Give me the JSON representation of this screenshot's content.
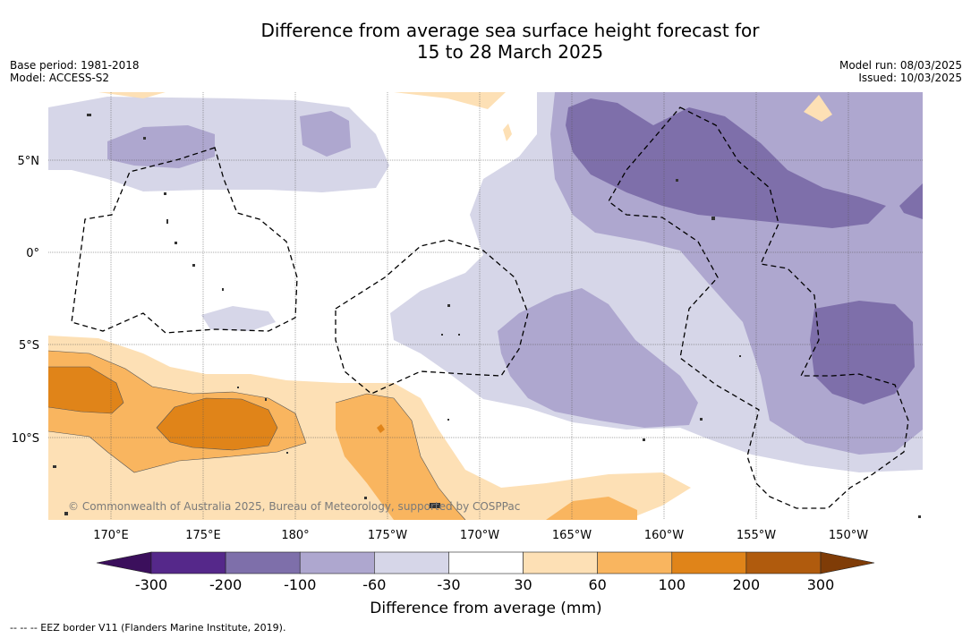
{
  "title": {
    "line1": "Difference from average sea surface height forecast for",
    "line2": "15 to 28 March 2025"
  },
  "info_left": {
    "base_period": "Base period: 1981-2018",
    "model": "Model: ACCESS-S2"
  },
  "info_right": {
    "model_run": "Model run: 08/03/2025",
    "issued": "Issued: 10/03/2025"
  },
  "map": {
    "lat_labels": [
      "5°N",
      "0°",
      "5°S",
      "10°S"
    ],
    "lon_labels": [
      "170°E",
      "175°E",
      "180°",
      "175°W",
      "170°W",
      "165°W",
      "160°W",
      "155°W",
      "150°W"
    ],
    "credit": "© Commonwealth of Australia 2025, Bureau of Meteorology, supported by COSPPac"
  },
  "colorbar": {
    "ticks": [
      "-300",
      "-200",
      "-100",
      "-60",
      "-30",
      "30",
      "60",
      "100",
      "200",
      "300"
    ],
    "label": "Difference from average (mm)",
    "colors": [
      "#3b0f5c",
      "#55288a",
      "#7e6faa",
      "#aea7cf",
      "#d6d6e8",
      "#ffffff",
      "#fde0b5",
      "#f9b55f",
      "#e08419",
      "#b05b0d",
      "#7f3c07"
    ]
  },
  "footer": {
    "eez_note": "-- -- -- EEZ border V11 (Flanders Marine Institute, 2019)."
  }
}
